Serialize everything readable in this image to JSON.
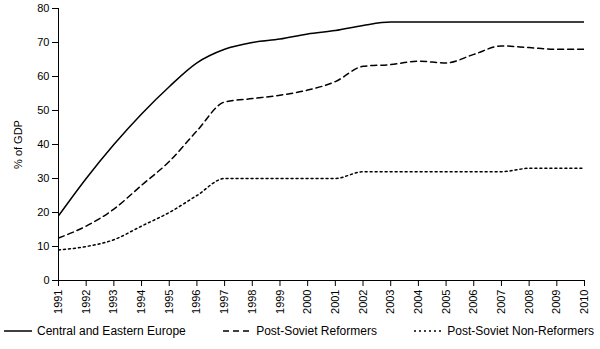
{
  "chart_data": {
    "type": "line",
    "y_label": "% of GDP",
    "x": [
      1991,
      1992,
      1993,
      1994,
      1995,
      1996,
      1997,
      1998,
      1999,
      2000,
      2001,
      2002,
      2003,
      2004,
      2005,
      2006,
      2007,
      2008,
      2009,
      2010
    ],
    "xlim": [
      1991,
      2010
    ],
    "xticks": [
      1991,
      1992,
      1993,
      1994,
      1995,
      1996,
      1997,
      1998,
      1999,
      2000,
      2001,
      2002,
      2003,
      2004,
      2005,
      2006,
      2007,
      2008,
      2009,
      2010
    ],
    "ylim": [
      0,
      80
    ],
    "yticks": [
      0,
      10,
      20,
      30,
      40,
      50,
      60,
      70,
      80
    ],
    "grid": false,
    "legend": "bottom",
    "series": [
      {
        "name": "Central and Eastern Europe",
        "color": "#000000",
        "line_style": "solid",
        "values": [
          19,
          30,
          40,
          49,
          57,
          64,
          68,
          70,
          71,
          72.5,
          73.5,
          75,
          76,
          76,
          76,
          76,
          76,
          76,
          76,
          76
        ]
      },
      {
        "name": "Post-Soviet Reformers",
        "color": "#000000",
        "line_style": "dashed",
        "values": [
          12.5,
          16,
          21,
          28,
          35,
          44,
          52.5,
          53.5,
          54.5,
          56,
          58.5,
          63,
          63.5,
          64.5,
          64,
          66.5,
          69,
          68.5,
          68,
          68
        ]
      },
      {
        "name": "Post-Soviet Non-Reformers",
        "color": "#000000",
        "line_style": "dotted",
        "values": [
          9,
          10,
          12,
          16,
          20,
          25,
          30,
          30,
          30,
          30,
          30,
          32,
          32,
          32,
          32,
          32,
          32,
          33,
          33,
          33
        ]
      }
    ]
  }
}
